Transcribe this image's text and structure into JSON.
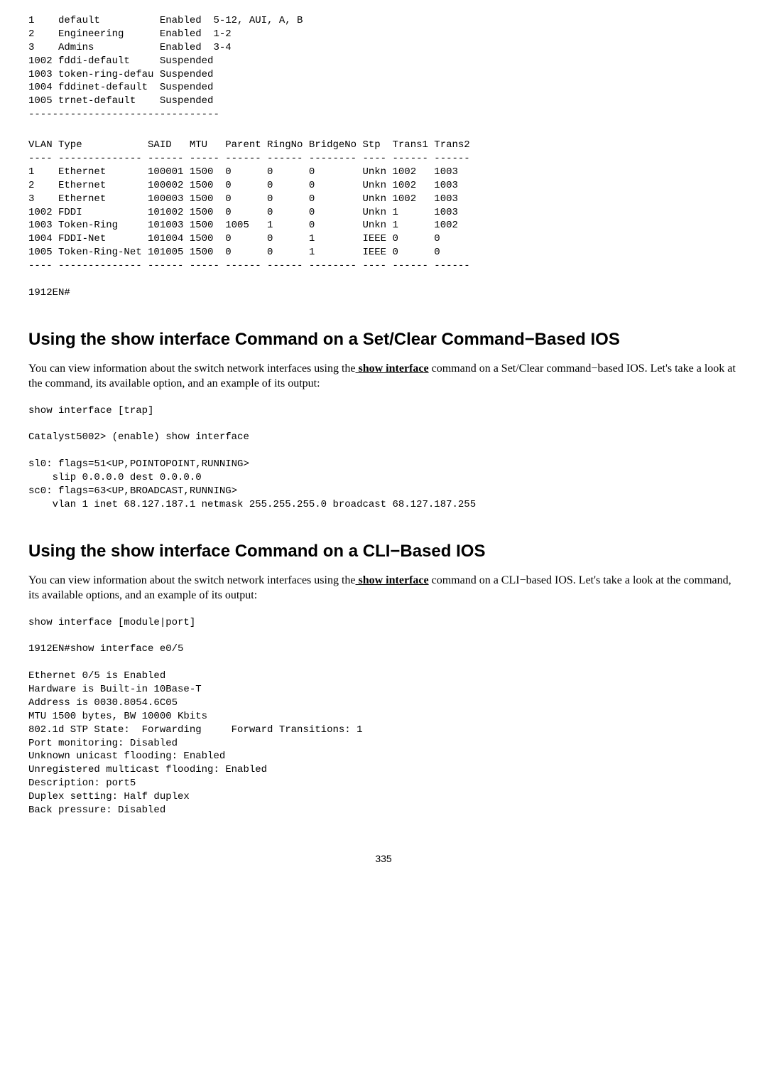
{
  "vlanStatusBlock": "1    default          Enabled  5-12, AUI, A, B\n2    Engineering      Enabled  1-2\n3    Admins           Enabled  3-4\n1002 fddi-default     Suspended\n1003 token-ring-defau Suspended\n1004 fddinet-default  Suspended\n1005 trnet-default    Suspended\n--------------------------------\n",
  "vlanTypeHeader": "VLAN Type           SAID   MTU   Parent RingNo BridgeNo Stp  Trans1 Trans2\n---- -------------- ------ ----- ------ ------ -------- ---- ------ ------",
  "vlanTypeRows": "1    Ethernet       100001 1500  0      0      0        Unkn 1002   1003\n2    Ethernet       100002 1500  0      0      0        Unkn 1002   1003\n3    Ethernet       100003 1500  0      0      0        Unkn 1002   1003\n1002 FDDI           101002 1500  0      0      0        Unkn 1      1003\n1003 Token-Ring     101003 1500  1005   1      0        Unkn 1      1002\n1004 FDDI-Net       101004 1500  0      0      1        IEEE 0      0\n1005 Token-Ring-Net 101005 1500  0      0      1        IEEE 0      0\n---- -------------- ------ ----- ------ ------ -------- ---- ------ ------\n\n1912EN#",
  "section1": {
    "heading": "Using the show interface Command on a Set/Clear Command−Based IOS",
    "para_before": "You can view information about the switch network interfaces using the",
    "cmd": " show interface",
    "para_after": " command on a Set/Clear command−based IOS. Let's take a look at the command, its available option, and an example of its output:",
    "code1": "show interface [trap]\n\nCatalyst5002> (enable) show interface\n\nsl0: flags=51<UP,POINTOPOINT,RUNNING>\n    slip 0.0.0.0 dest 0.0.0.0\nsc0: flags=63<UP,BROADCAST,RUNNING>\n    vlan 1 inet 68.127.187.1 netmask 255.255.255.0 broadcast 68.127.187.255"
  },
  "section2": {
    "heading": "Using the show interface Command on a CLI−Based IOS",
    "para_before": "You can view information about the switch network interfaces using the",
    "cmd": " show interface",
    "para_after": " command on a CLI−based IOS. Let's take a look at the command, its available options, and an example of its output:",
    "code1": "show interface [module|port]\n\n1912EN#show interface e0/5\n\nEthernet 0/5 is Enabled\nHardware is Built-in 10Base-T\nAddress is 0030.8054.6C05\nMTU 1500 bytes, BW 10000 Kbits\n802.1d STP State:  Forwarding     Forward Transitions: 1\nPort monitoring: Disabled\nUnknown unicast flooding: Enabled\nUnregistered multicast flooding: Enabled\nDescription: port5\nDuplex setting: Half duplex\nBack pressure: Disabled"
  },
  "pageNumber": "335"
}
